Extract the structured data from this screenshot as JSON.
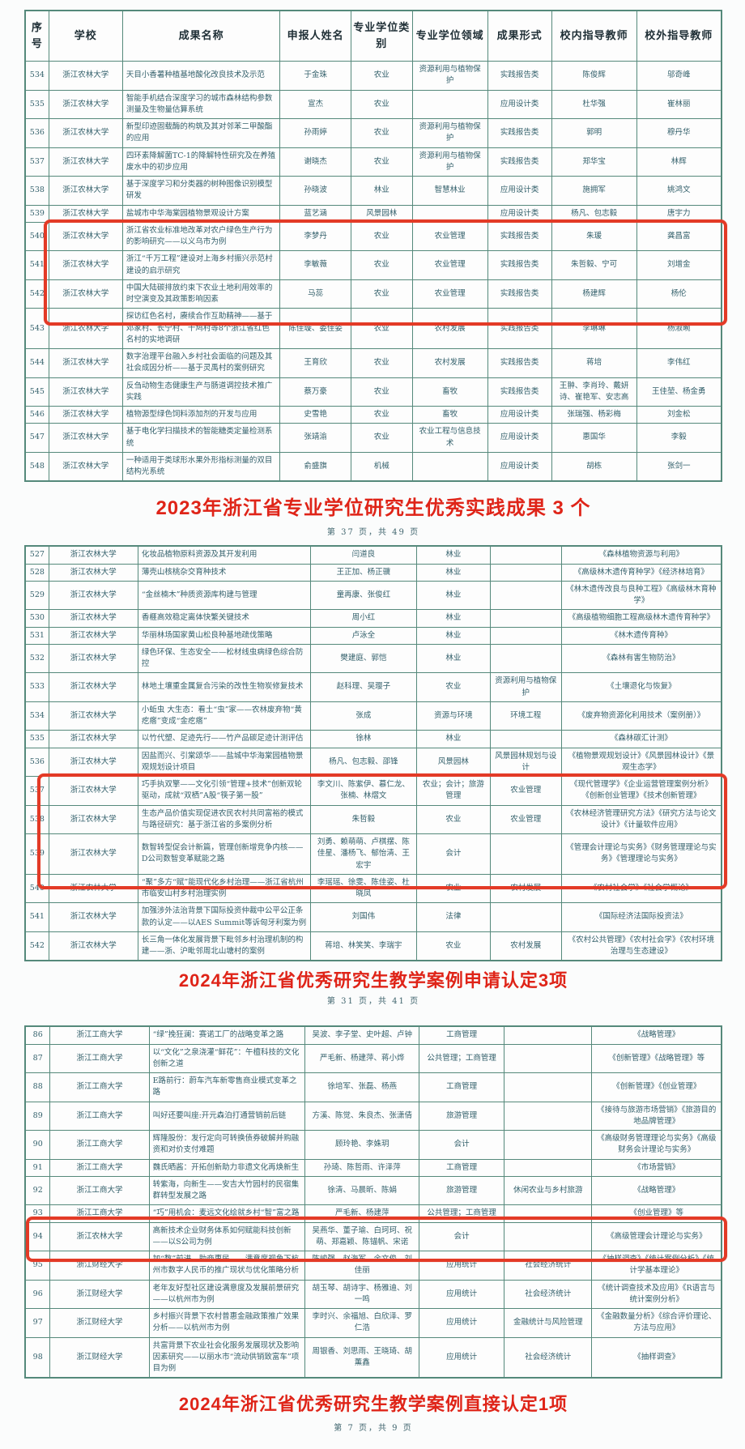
{
  "colors": {
    "accent_red": "#df2418",
    "table_border": "#55897b",
    "body_text": "#33606b"
  },
  "section1": {
    "caption": "2023年浙江省专业学位研究生优秀实践成果 3 个",
    "page_info": "第 37 页，共 49 页",
    "highlight": {
      "start": 6,
      "end": 8
    },
    "table": {
      "col_widths": [
        "3.4%",
        "10.6%",
        "22.6%",
        "10.2%",
        "8.8%",
        "10.8%",
        "9.2%",
        "12.2%",
        "12.2%"
      ],
      "headers": [
        "序号",
        "学校",
        "成果名称",
        "申报人姓名",
        "专业学位类别",
        "专业学位领域",
        "成果形式",
        "校内指导教师",
        "校外指导教师"
      ],
      "rows": [
        [
          "534",
          "浙江农林大学",
          "天目小香薯种植基地酸化改良技术及示范",
          "于金珠",
          "农业",
          "资源利用与植物保护",
          "实践报告类",
          "陈俊辉",
          "邬奇峰"
        ],
        [
          "535",
          "浙江农林大学",
          "智能手机结合深度学习的城市森林结构参数测量及生物量估算系统",
          "宣杰",
          "农业",
          "",
          "应用设计类",
          "杜华强",
          "崔林丽"
        ],
        [
          "536",
          "浙江农林大学",
          "新型印迹固载酶的构筑及其对邻苯二甲酸酯的应用",
          "孙雨婷",
          "农业",
          "资源利用与植物保护",
          "实践报告类",
          "郭明",
          "穆丹华"
        ],
        [
          "537",
          "浙江农林大学",
          "四环素降解菌TC-1的降解特性研究及在养殖废水中的初步应用",
          "谢晓杰",
          "农业",
          "资源利用与植物保护",
          "实践报告类",
          "郑华宝",
          "林辉"
        ],
        [
          "538",
          "浙江农林大学",
          "基于深度学习和分类器的树种图像识别模型研发",
          "孙晓波",
          "林业",
          "智慧林业",
          "应用设计类",
          "施拥军",
          "姚鸿文"
        ],
        [
          "539",
          "浙江农林大学",
          "盐城市中华海棠园植物景观设计方案",
          "蓝艺涵",
          "风景园林",
          "",
          "应用设计类",
          "杨凡、包志毅",
          "唐宇力"
        ],
        [
          "540",
          "浙江农林大学",
          "浙江省农业标准地改革对农户绿色生产行为的影响研究——以义乌市为例",
          "李梦丹",
          "农业",
          "农业管理",
          "实践报告类",
          "朱瑗",
          "龚昌富"
        ],
        [
          "541",
          "浙江农林大学",
          "浙江“千万工程”建设对上海乡村振兴示范村建设的启示研究",
          "李敏薇",
          "农业",
          "农业管理",
          "实践报告类",
          "朱哲毅、宁可",
          "刘增金"
        ],
        [
          "542",
          "浙江农林大学",
          "中国大陆碳排放约束下农业土地利用效率的时空演变及其政策影响因素",
          "马蕊",
          "农业",
          "农业管理",
          "实践报告类",
          "杨建辉",
          "杨伦"
        ],
        [
          "543",
          "浙江农林大学",
          "探访红色名村，赓续合作互助精神——基于邓家村、长宁村、千鸠村等8个浙江省红色名村的实地调研",
          "陈佳璇、娄佳姿",
          "农业",
          "农村发展",
          "实践报告类",
          "李琳琳",
          "杨淑畹"
        ],
        [
          "544",
          "浙江农林大学",
          "数字治理平台融入乡村社会面临的问题及其社会成因分析——基于灵禹村的案例研究",
          "王育欣",
          "农业",
          "农村发展",
          "实践报告类",
          "蒋培",
          "李伟红"
        ],
        [
          "545",
          "浙江农林大学",
          "反刍动物生态健康生产与肠道调控技术推广实践",
          "蔡万豪",
          "农业",
          "畜牧",
          "实践报告类",
          "王翀、李肖玲、戴妍诗、崔艳军、安志高",
          "王佳堃、杨金勇"
        ],
        [
          "546",
          "浙江农林大学",
          "植物源型绿色饲料添加剂的开发与应用",
          "史雪艳",
          "农业",
          "畜牧",
          "应用设计类",
          "张瑞强、杨彩梅",
          "刘金松"
        ],
        [
          "547",
          "浙江农林大学",
          "基于电化学扫描技术的智能糖类定量检测系统",
          "张靖渝",
          "农业",
          "农业工程与信息技术",
          "应用设计类",
          "惠国华",
          "李毅"
        ],
        [
          "548",
          "浙江农林大学",
          "一种适用于类球形水果外形指标测量的双目结构光系统",
          "俞盛旗",
          "机械",
          "",
          "应用设计类",
          "胡栋",
          "张剑一"
        ]
      ]
    }
  },
  "section2": {
    "caption": "2024年浙江省优秀研究生教学案例申请认定3项",
    "page_info": "第 31 页，共 41 页",
    "highlight": {
      "start": 10,
      "end": 12
    },
    "table": {
      "col_widths": [
        "3.4%",
        "12.8%",
        "24.8%",
        "15.2%",
        "10.6%",
        "10.2%",
        "23%"
      ],
      "rows": [
        [
          "527",
          "浙江农林大学",
          "化妆品植物原料资源及其开发利用",
          "闫道良",
          "林业",
          "",
          "《森林植物资源与利用》"
        ],
        [
          "528",
          "浙江农林大学",
          "薄壳山核桃杂交育种技术",
          "王正加、杨正骥",
          "林业",
          "",
          "《高级林木遗传育种学》《经济林培育》"
        ],
        [
          "529",
          "浙江农林大学",
          "“金丝楠木”种质资源库构建与管理",
          "童再康、张俊红",
          "林业",
          "",
          "《林木遗传改良与良种工程》《高级林木育种学》"
        ],
        [
          "530",
          "浙江农林大学",
          "香榧高效稳定离体快繁关键技术",
          "周小红",
          "林业",
          "",
          "《高级植物细胞工程高级林木遗传育种学》"
        ],
        [
          "531",
          "浙江农林大学",
          "华丽林场国家黄山松良种基地疏伐策略",
          "卢泳全",
          "林业",
          "",
          "《林木遗传育种》"
        ],
        [
          "532",
          "浙江农林大学",
          "绿色环保、生态安全——松材线虫病绿色综合防控",
          "樊建庭、郭恺",
          "林业",
          "",
          "《森林有害生物防治》"
        ],
        [
          "533",
          "浙江农林大学",
          "林地土壤重金属复合污染的改性生物炭修复技术",
          "赵科理、吴璎子",
          "农业",
          "资源利用与植物保护",
          "《土壤退化与恢复》"
        ],
        [
          "534",
          "浙江农林大学",
          "小蚯虫 大生态：看土“虫”家——农林废弃物“黄疙瘩”变成“金疙瘩”",
          "张成",
          "资源与环境",
          "环境工程",
          "《废弃物资源化利用技术（案例册）》"
        ],
        [
          "535",
          "浙江农林大学",
          "以竹代塑、足迹先行——竹产品碳足迹计测评估",
          "徐林",
          "林业",
          "",
          "《森林碳汇计测》"
        ],
        [
          "536",
          "浙江农林大学",
          "因盐而兴、引棠颂华——盐城中华海棠园植物景观规划设计项目",
          "杨凡、包志毅、邵锋",
          "风景园林",
          "风景园林规划与设计",
          "《植物景观规划设计》《风景园林设计》《景观生态学》"
        ],
        [
          "537",
          "浙江农林大学",
          "巧手执双擎——文化引领“管理+技术”创新双轮驱动，成就“双栖”A股“筷子第一股”",
          "李文川、陈紫伊、慕仁龙、张楠、林熠文",
          "农业；会计；旅游管理",
          "农业管理",
          "《现代管理学》《企业运营管理案例分析》《创新创业管理》《技术创新管理》"
        ],
        [
          "538",
          "浙江农林大学",
          "生态产品价值实现促进农民农村共同富裕的模式与路径研究：基于浙江省的多案例分析",
          "朱哲毅",
          "农业",
          "农业管理",
          "《农林经济管理研究方法》《研究方法与论文设计》《计量软件应用》"
        ],
        [
          "539",
          "浙江农林大学",
          "数智转型促会计新篇，管理创新增竞争内核——D公司数智变革赋能之路",
          "刘勇、赖萌萌、卢棋摆、陈佳星、潘杨飞、郁怡清、王宏宇",
          "会计",
          "",
          "《管理会计理论与实务》《财务管理理论与实务》《管理理论与实务》"
        ],
        [
          "540",
          "浙江农林大学",
          "“聚”多方“赋”能现代化乡村治理——浙江省杭州市临安山村乡村治理实例",
          "李瑶瑶、徐雯、陈佳姿、杜晓凤",
          "农业",
          "农村发展",
          "《农村社会学》《社会学概论》"
        ],
        [
          "541",
          "浙江农林大学",
          "加强涉外法治背景下国际投资仲裁中公平公正条款的认定——以AES Summit等诉匈牙利案为例",
          "刘国伟",
          "法律",
          "",
          "《国际经济法国际投资法》"
        ],
        [
          "542",
          "浙江农林大学",
          "长三角一体化发展背景下毗邻乡村治理机制的构建——浙、沪毗邻周北山塘村的案例",
          "蒋培、林笑笑、李瑞宇",
          "农业",
          "农村发展",
          "《农村公共管理》《农村社会学》《农村环境治理与生态建设》"
        ]
      ]
    }
  },
  "section3": {
    "caption": "2024年浙江省优秀研究生教学案例直接认定1项",
    "page_info": "第 7 页，共 9 页",
    "highlight": {
      "start": 8,
      "end": 8
    },
    "table": {
      "col_widths": [
        "3.6%",
        "14.2%",
        "22.4%",
        "16.4%",
        "12.2%",
        "12.6%",
        "18.6%"
      ],
      "rows": [
        [
          "86",
          "浙江工商大学",
          "“绿”挽狂澜：赛诺工厂的战略变革之路",
          "吴波、李子堂、史叶超、卢钟",
          "工商管理",
          "",
          "《战略管理》"
        ],
        [
          "87",
          "浙江工商大学",
          "以“文化”之泉浇灌“鲜花”：午檀科技的文化创新之道",
          "严毛新、杨建萍、蒋小烨",
          "公共管理；工商管理",
          "",
          "《创新管理》《战略管理》等"
        ],
        [
          "88",
          "浙江工商大学",
          "E路前行：蔚车汽车新零售商业模式变革之路",
          "徐培军、张磊、杨燕",
          "工商管理",
          "",
          "《创新管理》《创业管理》"
        ],
        [
          "89",
          "浙江工商大学",
          "叫好还要叫座:开元森泊打通营销前后链",
          "方溪、陈觉、朱良杰、张潇倩",
          "旅游管理",
          "",
          "《接待与旅游市场营销》《旅游目的地品牌管理》"
        ],
        [
          "90",
          "浙江工商大学",
          "辉隆股份：发行定向可转换债券破解并购融资和对价支付难题",
          "顾玲艳、李姝玥",
          "会计",
          "",
          "《高级财务管理理论与实务》《高级财务会计理论与实务》"
        ],
        [
          "91",
          "浙江工商大学",
          "魏氏晒酱：开拓创新助力非遗文化再焕新生",
          "孙琦、陈哲雨、许泽萍",
          "工商管理",
          "",
          "《市场营销》"
        ],
        [
          "92",
          "浙江工商大学",
          "转紫海，向新生——安吉大竹园村的民宿集群转型发展之路",
          "徐清、马晨昕、陈娟",
          "旅游管理",
          "休闲农业与乡村旅游",
          "《战略管理》"
        ],
        [
          "93",
          "浙江工商大学",
          "“巧”用机会：麦远文化绘就乡村“智”富之路",
          "严毛新、杨建萍",
          "公共管理；工商管理",
          "",
          "《创业管理》等"
        ],
        [
          "94",
          "浙江农林大学",
          "高新技术企业财务体系如何赋能科技创新——以S公司为例",
          "吴燕华、董子瑜、白珂珂、祝萌、郑嘉颖、陈锚帆、宋诺",
          "会计",
          "",
          "《高级管理会计理论与实务》"
        ],
        [
          "95",
          "浙江财经大学",
          "加“数”前进，助商惠民——满意度视角下杭州市数字人民币的推广现状与优化策略分析",
          "陈峻强、赵海军、余文俊、刘佳丽",
          "应用统计",
          "社会经济统计",
          "《抽样调查》《统计案例分析》《统计学基本理论》"
        ],
        [
          "96",
          "浙江财经大学",
          "老年友好型社区建设满意度及发展前景研究——以杭州市为例",
          "胡玉琴、胡诗宇、杨雅迪、刘一鸣",
          "应用统计",
          "社会经济统计",
          "《统计调查技术及应用》《R语言与统计案例分析》"
        ],
        [
          "97",
          "浙江财经大学",
          "乡村振兴背景下农村普惠金融政策推广效果分析——以杭州市为例",
          "李时兴、余福旭、白欣泽、罗仁浩",
          "应用统计",
          "金融统计与风险管理",
          "《金融数量分析》《综合评价理论、方法与应用》"
        ],
        [
          "98",
          "浙江财经大学",
          "共富背景下农业社会化服务发展现状及影响因素研究——以丽水市“流动供销致富车”项目为例",
          "周银香、刘思雨、王晓琦、胡薰鑫",
          "应用统计",
          "社会经济统计",
          "《抽样调查》"
        ]
      ]
    }
  }
}
